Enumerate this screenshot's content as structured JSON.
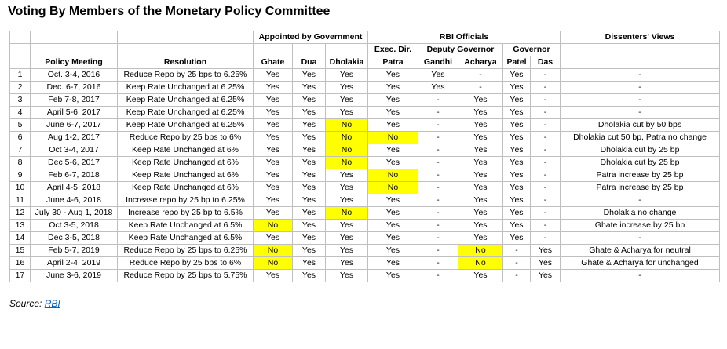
{
  "title": "Voting By Members of the Monetary Policy Committee",
  "colors": {
    "highlight_bg": "#FFFF00",
    "no_vote_text": "#9C0006",
    "grid_line": "#BFBFBF",
    "link_blue": "#0563C1"
  },
  "table": {
    "headers": {
      "appointed": "Appointed by Government",
      "rbi": "RBI Officials",
      "dissenters": "Dissenters' Views",
      "exec_dir": "Exec. Dir.",
      "deputy_governor": "Deputy Governor",
      "governor": "Governor",
      "policy_meeting": "Policy Meeting",
      "resolution": "Resolution"
    },
    "members": [
      "Ghate",
      "Dua",
      "Dholakia",
      "Patra",
      "Gandhi",
      "Acharya",
      "Patel",
      "Das"
    ],
    "rows": [
      {
        "num": 1,
        "meeting": "Oct. 3-4, 2016",
        "resolution": "Reduce Repo by 25 bps to 6.25%",
        "votes": [
          "Yes",
          "Yes",
          "Yes",
          "Yes",
          "Yes",
          "-",
          "Yes",
          "-"
        ],
        "dissent": "-"
      },
      {
        "num": 2,
        "meeting": "Dec. 6-7, 2016",
        "resolution": "Keep Rate Unchanged at 6.25%",
        "votes": [
          "Yes",
          "Yes",
          "Yes",
          "Yes",
          "Yes",
          "-",
          "Yes",
          "-"
        ],
        "dissent": "-"
      },
      {
        "num": 3,
        "meeting": "Feb 7-8, 2017",
        "resolution": "Keep Rate Unchanged at 6.25%",
        "votes": [
          "Yes",
          "Yes",
          "Yes",
          "Yes",
          "-",
          "Yes",
          "Yes",
          "-"
        ],
        "dissent": "-"
      },
      {
        "num": 4,
        "meeting": "April 5-6, 2017",
        "resolution": "Keep Rate Unchanged at 6.25%",
        "votes": [
          "Yes",
          "Yes",
          "Yes",
          "Yes",
          "-",
          "Yes",
          "Yes",
          "-"
        ],
        "dissent": "-"
      },
      {
        "num": 5,
        "meeting": "June 6-7, 2017",
        "resolution": "Keep Rate Unchanged at 6.25%",
        "votes": [
          "Yes",
          "Yes",
          "No",
          "Yes",
          "-",
          "Yes",
          "Yes",
          "-"
        ],
        "dissent": "Dholakia cut by 50 bps"
      },
      {
        "num": 6,
        "meeting": "Aug 1-2, 2017",
        "resolution": "Reduce Repo by 25 bps to 6%",
        "votes": [
          "Yes",
          "Yes",
          "No",
          "No",
          "-",
          "Yes",
          "Yes",
          "-"
        ],
        "dissent": "Dholakia cut 50 bp, Patra no change"
      },
      {
        "num": 7,
        "meeting": "Oct 3-4, 2017",
        "resolution": "Keep Rate Unchanged at 6%",
        "votes": [
          "Yes",
          "Yes",
          "No",
          "Yes",
          "-",
          "Yes",
          "Yes",
          "-"
        ],
        "dissent": "Dholakia cut by 25 bp"
      },
      {
        "num": 8,
        "meeting": "Dec 5-6, 2017",
        "resolution": "Keep Rate Unchanged at 6%",
        "votes": [
          "Yes",
          "Yes",
          "No",
          "Yes",
          "-",
          "Yes",
          "Yes",
          "-"
        ],
        "dissent": "Dholakia cut by 25 bp"
      },
      {
        "num": 9,
        "meeting": "Feb 6-7, 2018",
        "resolution": "Keep Rate Unchanged at 6%",
        "votes": [
          "Yes",
          "Yes",
          "Yes",
          "No",
          "-",
          "Yes",
          "Yes",
          "-"
        ],
        "dissent": "Patra increase by 25 bp"
      },
      {
        "num": 10,
        "meeting": "April 4-5, 2018",
        "resolution": "Keep Rate Unchanged at 6%",
        "votes": [
          "Yes",
          "Yes",
          "Yes",
          "No",
          "-",
          "Yes",
          "Yes",
          "-"
        ],
        "dissent": "Patra increase by 25 bp"
      },
      {
        "num": 11,
        "meeting": "June 4-6, 2018",
        "resolution": "Increase repo by 25 bp to 6.25%",
        "votes": [
          "Yes",
          "Yes",
          "Yes",
          "Yes",
          "-",
          "Yes",
          "Yes",
          "-"
        ],
        "dissent": "-"
      },
      {
        "num": 12,
        "meeting": "July 30 - Aug 1, 2018",
        "resolution": "Increase repo by 25 bp to 6.5%",
        "votes": [
          "Yes",
          "Yes",
          "No",
          "Yes",
          "-",
          "Yes",
          "Yes",
          "-"
        ],
        "dissent": "Dholakia no change"
      },
      {
        "num": 13,
        "meeting": "Oct 3-5, 2018",
        "resolution": "Keep Rate Unchanged at 6.5%",
        "votes": [
          "No",
          "Yes",
          "Yes",
          "Yes",
          "-",
          "Yes",
          "Yes",
          "-"
        ],
        "dissent": "Ghate increase by 25 bp"
      },
      {
        "num": 14,
        "meeting": "Dec 3-5, 2018",
        "resolution": "Keep Rate Unchanged at 6.5%",
        "votes": [
          "Yes",
          "Yes",
          "Yes",
          "Yes",
          "-",
          "Yes",
          "Yes",
          "-"
        ],
        "dissent": "-"
      },
      {
        "num": 15,
        "meeting": "Feb 5-7, 2019",
        "resolution": "Reduce Repo by 25 bps to 6.25%",
        "votes": [
          "No",
          "Yes",
          "Yes",
          "Yes",
          "-",
          "No",
          "-",
          "Yes"
        ],
        "dissent": "Ghate & Acharya for neutral"
      },
      {
        "num": 16,
        "meeting": "April 2-4, 2019",
        "resolution": "Reduce Repo by 25 bps to 6%",
        "votes": [
          "No",
          "Yes",
          "Yes",
          "Yes",
          "-",
          "No",
          "-",
          "Yes"
        ],
        "dissent": "Ghate & Acharya for unchanged"
      },
      {
        "num": 17,
        "meeting": "June 3-6, 2019",
        "resolution": "Reduce Repo by 25 bps to 5.75%",
        "votes": [
          "Yes",
          "Yes",
          "Yes",
          "Yes",
          "-",
          "Yes",
          "-",
          "Yes"
        ],
        "dissent": "-"
      }
    ]
  },
  "source": {
    "label": "Source:",
    "link": "RBI"
  }
}
